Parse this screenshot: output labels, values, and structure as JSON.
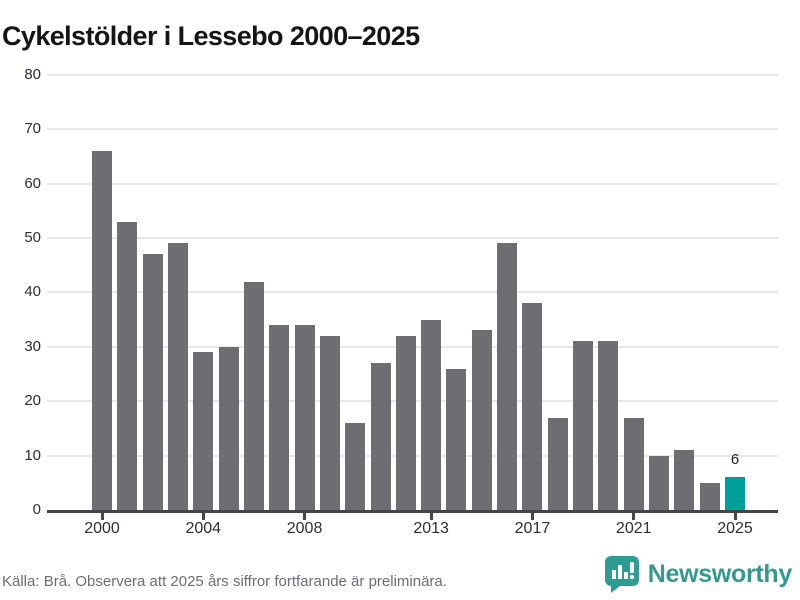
{
  "title": "Cykelstölder i Lessebo 2000–2025",
  "footer": {
    "source": "Källa: Brå. Observera att 2025 års siffror fortfarande är preliminära.",
    "brand": "Newsworthy"
  },
  "chart_data": {
    "type": "bar",
    "title": "Cykelstölder i Lessebo 2000–2025",
    "categories": [
      "2000",
      "2001",
      "2002",
      "2003",
      "2004",
      "2005",
      "2006",
      "2007",
      "2008",
      "2009",
      "2010",
      "2011",
      "2012",
      "2013",
      "2014",
      "2015",
      "2016",
      "2017",
      "2018",
      "2019",
      "2020",
      "2021",
      "2022",
      "2023",
      "2024",
      "2025"
    ],
    "values": [
      66,
      53,
      47,
      49,
      29,
      30,
      42,
      34,
      34,
      32,
      16,
      27,
      32,
      35,
      26,
      33,
      49,
      38,
      17,
      31,
      31,
      17,
      10,
      11,
      5,
      6
    ],
    "highlight_index": 25,
    "highlight_label": "6",
    "xlabel": "",
    "ylabel": "",
    "ylim": [
      0,
      80
    ],
    "yticks": [
      0,
      10,
      20,
      30,
      40,
      50,
      60,
      70,
      80
    ],
    "xtick_labels": [
      "2000",
      "2004",
      "2008",
      "2013",
      "2017",
      "2021",
      "2025"
    ],
    "xtick_indices": [
      0,
      4,
      8,
      13,
      17,
      21,
      25
    ],
    "grid": true,
    "legend_position": "none",
    "colors": {
      "bar": "#6e6d72",
      "highlight": "#00a09a",
      "gridline": "#e8e8e8",
      "axis": "#44444b",
      "brand_teal": "#35988f"
    }
  }
}
